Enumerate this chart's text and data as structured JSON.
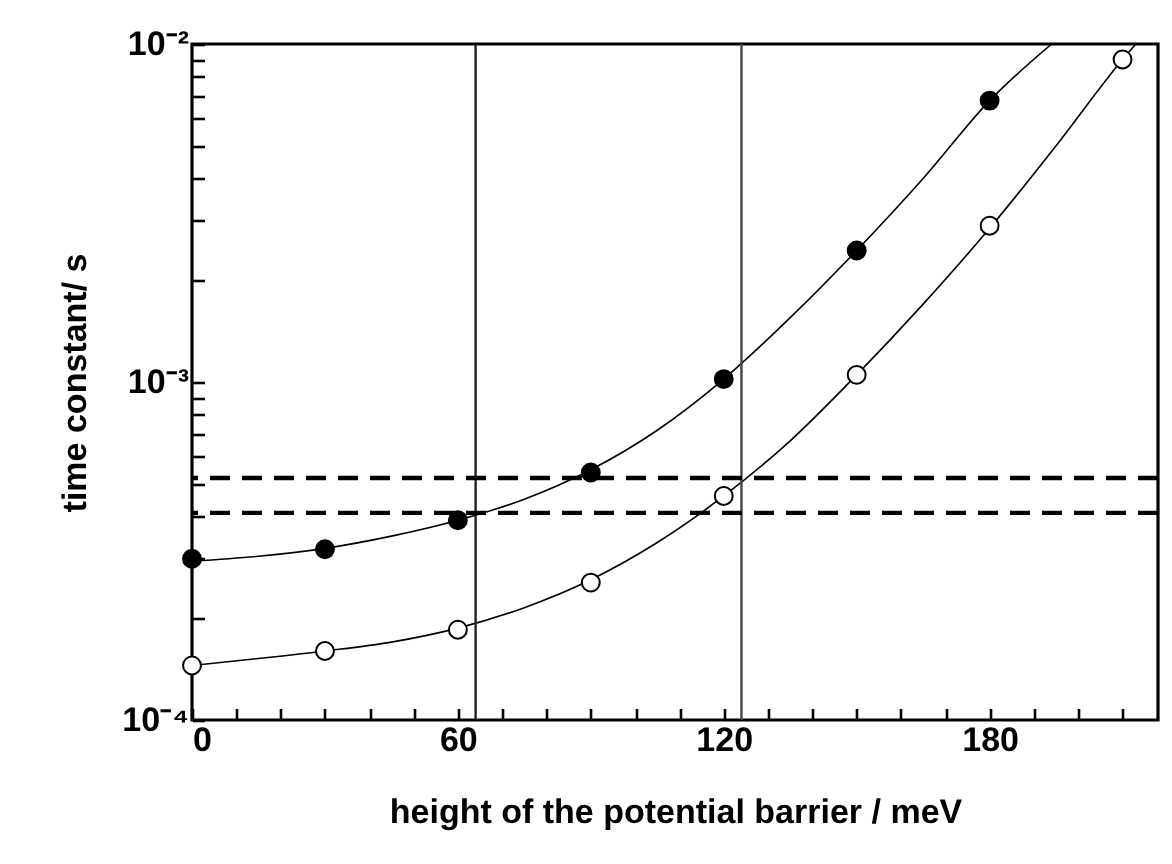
{
  "chart_data": {
    "type": "scatter",
    "xlabel": "height of the potential barrier / meV",
    "ylabel": "time constant/ s",
    "xlim": [
      0,
      218
    ],
    "ylim": [
      0.0001,
      0.01
    ],
    "log": "y",
    "grid": false,
    "marker": "circle",
    "xticks": [
      0,
      {
        "value": 10,
        "label": null
      },
      {
        "value": 20,
        "label": null
      },
      {
        "value": 30,
        "label": null
      },
      {
        "value": 40,
        "label": null
      },
      {
        "value": 50,
        "label": null
      },
      60,
      {
        "value": 70,
        "label": null
      },
      {
        "value": 80,
        "label": null
      },
      {
        "value": 90,
        "label": null
      },
      {
        "value": 100,
        "label": null
      },
      {
        "value": 110,
        "label": null
      },
      120,
      {
        "value": 130,
        "label": null
      },
      {
        "value": 140,
        "label": null
      },
      {
        "value": 150,
        "label": null
      },
      {
        "value": 160,
        "label": null
      },
      {
        "value": 170,
        "label": null
      },
      180,
      {
        "value": 190,
        "label": null
      },
      {
        "value": 200,
        "label": null
      },
      {
        "value": 210,
        "label": null
      }
    ],
    "yticks": [
      {
        "value": 0.0001,
        "label": "10⁻⁴"
      },
      {
        "value": 0.0002,
        "label": null
      },
      {
        "value": 0.0003,
        "label": null
      },
      {
        "value": 0.0004,
        "label": null
      },
      {
        "value": 0.0005,
        "label": null
      },
      {
        "value": 0.0006,
        "label": null
      },
      {
        "value": 0.0007,
        "label": null
      },
      {
        "value": 0.0008,
        "label": null
      },
      {
        "value": 0.0009,
        "label": null
      },
      {
        "value": 0.001,
        "label": "10⁻³"
      },
      {
        "value": 0.002,
        "label": null
      },
      {
        "value": 0.003,
        "label": null
      },
      {
        "value": 0.004,
        "label": null
      },
      {
        "value": 0.005,
        "label": null
      },
      {
        "value": 0.006,
        "label": null
      },
      {
        "value": 0.007,
        "label": null
      },
      {
        "value": 0.008,
        "label": null
      },
      {
        "value": 0.009,
        "label": null
      },
      {
        "value": 0.01,
        "label": "10⁻²"
      }
    ],
    "series": [
      {
        "type": "line",
        "color": "#000000",
        "marker": "none",
        "x": [
          0,
          15,
          30,
          45,
          60,
          75,
          90,
          105,
          120,
          135,
          150,
          165,
          180,
          194
        ],
        "values": [
          0.000295,
          0.000305,
          0.000322,
          0.00035,
          0.00039,
          0.00045,
          0.00055,
          0.00072,
          0.00102,
          0.00155,
          0.00245,
          0.004,
          0.0068,
          0.01
        ]
      },
      {
        "type": "line",
        "color": "#000000",
        "marker": "none",
        "x": [
          0,
          15,
          30,
          45,
          60,
          75,
          90,
          105,
          120,
          135,
          150,
          165,
          180,
          195,
          210,
          213
        ],
        "values": [
          0.000145,
          0.000152,
          0.00016,
          0.00017,
          0.000187,
          0.000215,
          0.00026,
          0.000335,
          0.00046,
          0.00067,
          0.00105,
          0.0017,
          0.00285,
          0.005,
          0.009,
          0.01
        ]
      },
      {
        "color": "#000000",
        "x": [
          0,
          30,
          60,
          90,
          120,
          150,
          180
        ],
        "values": [
          0.0003,
          0.00032,
          0.00039,
          0.00054,
          0.00102,
          0.00245,
          0.0068
        ]
      },
      {
        "color": "#ffffff",
        "x": [
          0,
          30,
          60,
          90,
          120,
          150,
          180,
          210
        ],
        "values": [
          0.000145,
          0.00016,
          0.000185,
          0.000255,
          0.00046,
          0.00105,
          0.0029,
          0.009
        ]
      }
    ],
    "ref_lines": [
      {
        "axis": "x",
        "value": 64,
        "color": "#222222",
        "line_style": "solid"
      },
      {
        "axis": "x",
        "value": 124,
        "color": "#444444",
        "line_style": "solid"
      },
      {
        "axis": "y",
        "value": 0.00052,
        "color": "#000000",
        "line_style": "dashed"
      },
      {
        "axis": "y",
        "value": 0.00041,
        "color": "#000000",
        "line_style": "dashed"
      }
    ]
  }
}
